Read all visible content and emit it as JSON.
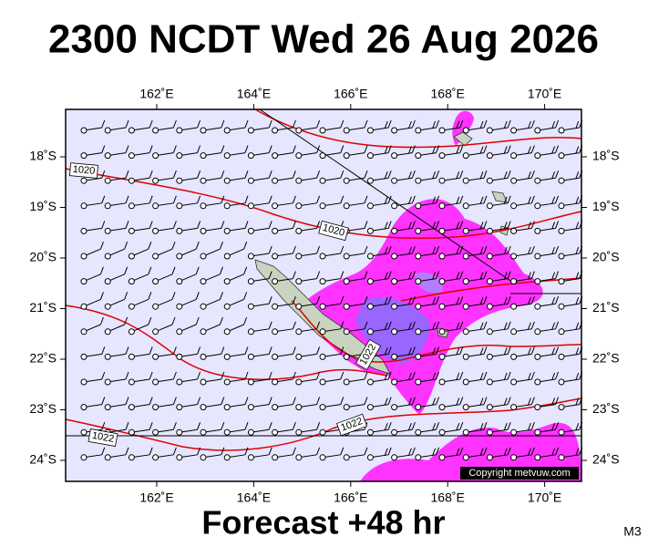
{
  "header": {
    "title": "2300 NCDT Wed 26 Aug 2026"
  },
  "footer": {
    "forecast": "Forecast +48 hr",
    "model": "M3"
  },
  "map": {
    "copyright": "Copyright metvuw.com",
    "lon_ticks": [
      {
        "value": 162,
        "label": "162˚E"
      },
      {
        "value": 164,
        "label": "164˚E"
      },
      {
        "value": 166,
        "label": "166˚E"
      },
      {
        "value": 168,
        "label": "168˚E"
      },
      {
        "value": 170,
        "label": "170˚E"
      }
    ],
    "lat_ticks": [
      {
        "value": -18,
        "label": "18˚S"
      },
      {
        "value": -19,
        "label": "19˚S"
      },
      {
        "value": -20,
        "label": "20˚S"
      },
      {
        "value": -21,
        "label": "21˚S"
      },
      {
        "value": -22,
        "label": "22˚S"
      },
      {
        "value": -23,
        "label": "23˚S"
      },
      {
        "value": -24,
        "label": "24˚S"
      }
    ],
    "isobar_labels": [
      "1020",
      "1020",
      "1022",
      "1022",
      "1022"
    ]
  }
}
